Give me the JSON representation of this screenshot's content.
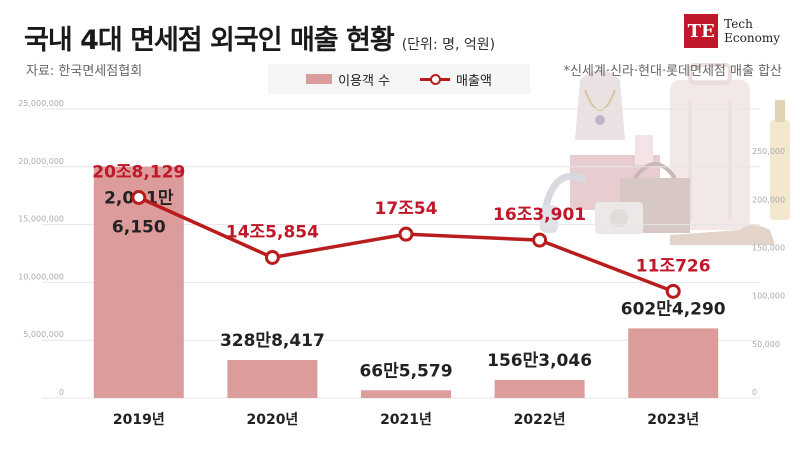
{
  "header": {
    "title": "국내 4대 면세점 외국인 매출 현황",
    "unit": "(단위: 명, 억원)",
    "source": "자료: 한국면세점협회",
    "footnote": "*신세계·신라·현대·롯데면세점 매출 합산"
  },
  "logo": {
    "mark": "TE",
    "line1": "Tech",
    "line2": "Economy"
  },
  "legend": {
    "bar": "이용객 수",
    "line": "매출액"
  },
  "colors": {
    "bar": "#dd9c9c",
    "line": "#b91c1c",
    "label_line": "#c0182a"
  },
  "chart_data": {
    "type": "bar",
    "categories": [
      "2019년",
      "2020년",
      "2021년",
      "2022년",
      "2023년"
    ],
    "series": [
      {
        "name": "이용객 수",
        "type": "bar",
        "axis": "left",
        "values": [
          20016150,
          3288417,
          665579,
          1563046,
          6024290
        ],
        "labels": [
          "2,001만|6,150",
          "328만8,417",
          "66만5,579",
          "156만3,046",
          "602만4,290"
        ]
      },
      {
        "name": "매출액",
        "type": "line",
        "axis": "right",
        "values": [
          208129,
          145854,
          170054,
          163901,
          110726
        ],
        "labels": [
          "20조8,129",
          "14조5,854",
          "17조54",
          "16조3,901",
          "11조726"
        ]
      }
    ],
    "left_axis": {
      "ylim": [
        0,
        25000000
      ],
      "ticks": [
        "0",
        "5,000,000",
        "10,000,000",
        "15,000,000",
        "20,000,000",
        "25,000,000"
      ]
    },
    "right_axis": {
      "ylim": [
        0,
        300000
      ],
      "ticks": [
        "0",
        "50,000",
        "100,000",
        "150,000",
        "200,000",
        "250,000"
      ]
    },
    "grid": true,
    "legend_position": "top-center"
  }
}
